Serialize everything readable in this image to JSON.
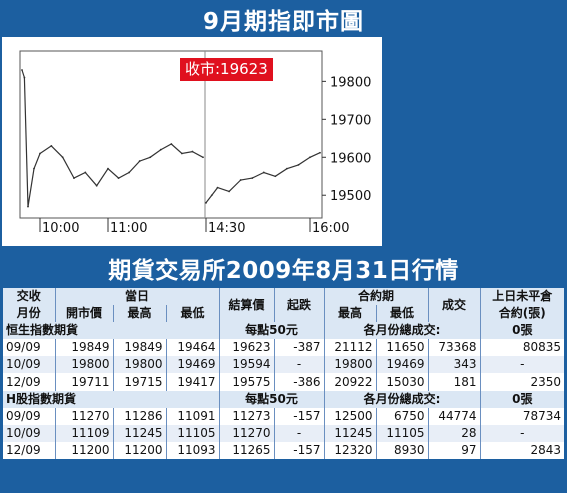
{
  "top_title": "9月期指即市圖",
  "chart_data": {
    "type": "line",
    "close_label": "收市:19623",
    "x_ticks": [
      "10:00",
      "11:00",
      "14:30",
      "16:00"
    ],
    "y_ticks": [
      19800,
      19700,
      19600,
      19500
    ],
    "ylim": [
      19440,
      19880
    ],
    "x": [
      "09:45",
      "09:47",
      "09:50",
      "09:55",
      "10:00",
      "10:10",
      "10:20",
      "10:30",
      "10:40",
      "10:50",
      "11:00",
      "11:10",
      "11:20",
      "11:30",
      "11:40",
      "11:50",
      "12:00",
      "12:10",
      "12:20",
      "12:30",
      "14:30",
      "14:35",
      "14:40",
      "14:50",
      "15:00",
      "15:10",
      "15:20",
      "15:30",
      "15:40",
      "15:50",
      "16:00",
      "16:10"
    ],
    "series": [
      {
        "values": [
          19830,
          19810,
          19470,
          19570,
          19610,
          19630,
          19600,
          19545,
          19560,
          19525,
          19570,
          19545,
          19560,
          19590,
          19600,
          19620,
          19635,
          19610,
          19615,
          19600,
          19480,
          19500,
          19520,
          19510,
          19540,
          19545,
          19560,
          19550,
          19570,
          19580,
          19600,
          19612
        ]
      }
    ]
  },
  "mid_title": "期貨交易所2009年8月31日行情",
  "table": {
    "header_row1": [
      "交收",
      "當日",
      "結算價",
      "起跌",
      "合約期",
      "成交",
      "上日未平倉"
    ],
    "header_row2": [
      "月份",
      "開市價",
      "最高",
      "最低",
      "最高",
      "最低",
      "合約(張)"
    ],
    "sections": [
      {
        "name": "恒生指數期貨",
        "unit": "每點50元",
        "monthly_label": "各月份總成交:",
        "monthly_value": "0張",
        "rows": [
          [
            "09/09",
            "19849",
            "19849",
            "19464",
            "19623",
            "-387",
            "21112",
            "11650",
            "73368",
            "80835"
          ],
          [
            "10/09",
            "19800",
            "19800",
            "19469",
            "19594",
            "-",
            "19800",
            "19469",
            "343",
            "-"
          ],
          [
            "12/09",
            "19711",
            "19715",
            "19417",
            "19575",
            "-386",
            "20922",
            "15030",
            "181",
            "2350"
          ]
        ]
      },
      {
        "name": "H股指數期貨",
        "unit": "每點50元",
        "monthly_label": "各月份總成交:",
        "monthly_value": "0張",
        "rows": [
          [
            "09/09",
            "11270",
            "11286",
            "11091",
            "11273",
            "-157",
            "12500",
            "6750",
            "44774",
            "78734"
          ],
          [
            "10/09",
            "11109",
            "11245",
            "11105",
            "11270",
            "-",
            "11245",
            "11105",
            "28",
            "-"
          ],
          [
            "12/09",
            "11200",
            "11200",
            "11093",
            "11265",
            "-157",
            "12320",
            "8930",
            "97",
            "2843"
          ]
        ]
      }
    ]
  }
}
